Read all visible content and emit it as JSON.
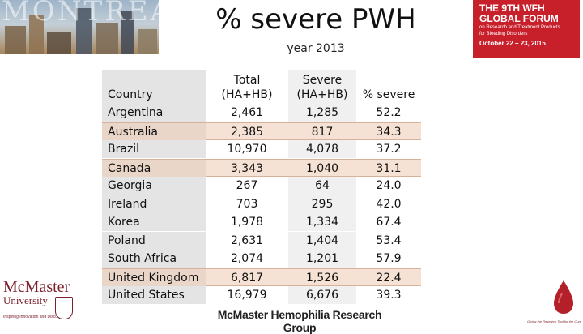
{
  "header": {
    "title": "% severe PWH",
    "subtitle": "year 2013",
    "banner_text": "MONTREAL"
  },
  "wfh_badge": {
    "line1": "THE 9TH WFH",
    "line2": "GLOBAL FORUM",
    "line3a": "on Research and Treatment Products",
    "line3b": "for Bleeding Disorders",
    "dates": "October 22 – 23, 2015",
    "color": "#c8202b"
  },
  "table": {
    "columns": {
      "country": "Country",
      "total_l1": "Total",
      "total_l2": "(HA+HB)",
      "severe_l1": "Severe",
      "severe_l2": "(HA+HB)",
      "pct": "% severe"
    },
    "rows": [
      {
        "country": "Argentina",
        "total": "2,461",
        "severe": "1,285",
        "pct": "52.2",
        "highlight": false
      },
      {
        "country": "Australia",
        "total": "2,385",
        "severe": "817",
        "pct": "34.3",
        "highlight": true
      },
      {
        "country": "Brazil",
        "total": "10,970",
        "severe": "4,078",
        "pct": "37.2",
        "highlight": false
      },
      {
        "country": "Canada",
        "total": "3,343",
        "severe": "1,040",
        "pct": "31.1",
        "highlight": true
      },
      {
        "country": "Georgia",
        "total": "267",
        "severe": "64",
        "pct": "24.0",
        "highlight": false
      },
      {
        "country": "Ireland",
        "total": "703",
        "severe": "295",
        "pct": "42.0",
        "highlight": false
      },
      {
        "country": "Korea",
        "total": "1,978",
        "severe": "1,334",
        "pct": "67.4",
        "highlight": false
      },
      {
        "country": "Poland",
        "total": "2,631",
        "severe": "1,404",
        "pct": "53.4",
        "highlight": false
      },
      {
        "country": "South Africa",
        "total": "2,074",
        "severe": "1,201",
        "pct": "57.9",
        "highlight": false
      },
      {
        "country": "United Kingdom",
        "total": "6,817",
        "severe": "1,526",
        "pct": "22.4",
        "highlight": true
      },
      {
        "country": "United States",
        "total": "16,979",
        "severe": "6,676",
        "pct": "39.3",
        "highlight": false
      }
    ],
    "highlight_color": "#f6e2d4"
  },
  "footer": {
    "group": "McMaster Hemophilia Research Group"
  },
  "logos": {
    "mcmaster_l1": "McMaster",
    "mcmaster_l2": "University",
    "mcmaster_tag": "Inspiring Innovation and Discovery",
    "drop_caption": "Giving the Research Tool for the Cure",
    "drop_icon": "blood-drop-icon"
  }
}
